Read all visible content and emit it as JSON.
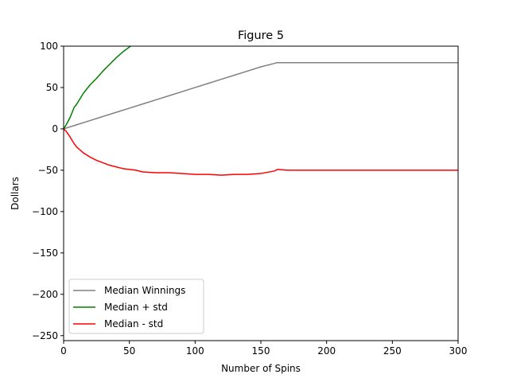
{
  "chart_data": {
    "type": "line",
    "title": "Figure 5",
    "xlabel": "Number of Spins",
    "ylabel": "Dollars",
    "xlim": [
      0,
      300
    ],
    "ylim": [
      -256,
      100
    ],
    "xticks": [
      0,
      50,
      100,
      150,
      200,
      250,
      300
    ],
    "yticks": [
      -250,
      -200,
      -150,
      -100,
      -50,
      0,
      50,
      100
    ],
    "grid": false,
    "legend_position": "lower-left",
    "series": [
      {
        "name": "Median Winnings",
        "color": "#808080",
        "x": [
          0,
          10,
          20,
          30,
          40,
          50,
          60,
          70,
          80,
          90,
          100,
          110,
          120,
          130,
          140,
          150,
          160,
          162,
          170,
          200,
          250,
          300
        ],
        "y": [
          0,
          5,
          10,
          15,
          20,
          25,
          30,
          35,
          40,
          45,
          50,
          55,
          60,
          65,
          70,
          75,
          79,
          80,
          80,
          80,
          80,
          80
        ]
      },
      {
        "name": "Median + std",
        "color": "#008000",
        "x": [
          0,
          2,
          5,
          8,
          10,
          15,
          20,
          25,
          30,
          35,
          40,
          45,
          50,
          55
        ],
        "y": [
          0,
          5,
          14,
          26,
          30,
          43,
          53,
          61,
          70,
          78,
          86,
          93,
          99,
          104
        ]
      },
      {
        "name": "Median - std",
        "color": "#ff0000",
        "x": [
          0,
          2,
          5,
          8,
          10,
          15,
          20,
          25,
          30,
          35,
          40,
          45,
          50,
          55,
          60,
          70,
          80,
          90,
          100,
          110,
          120,
          130,
          140,
          150,
          160,
          163,
          170,
          200,
          250,
          300
        ],
        "y": [
          0,
          -3,
          -10,
          -18,
          -22,
          -29,
          -34,
          -38,
          -41,
          -44,
          -46,
          -48,
          -49,
          -50,
          -52,
          -53,
          -53,
          -54,
          -55,
          -55,
          -56,
          -55,
          -55,
          -54,
          -51,
          -49,
          -50,
          -50,
          -50,
          -50
        ]
      }
    ]
  }
}
